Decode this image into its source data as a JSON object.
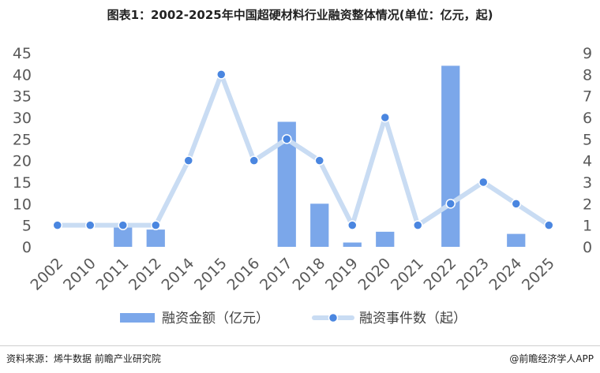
{
  "title": "图表1：2002-2025年中国超硬材料行业融资整体情况(单位：亿元，起)",
  "source_left": "资料来源：烯牛数据 前瞻产业研究院",
  "source_right": "@前瞻经济学人APP",
  "colors": {
    "bar": "#7ba7ea",
    "line": "#c9dcf3",
    "marker": "#4a86e0",
    "marker_edge": "#ffffff",
    "axis_text": "#595959"
  },
  "chart_data": {
    "type": "bar+line",
    "categories": [
      "2002",
      "2010",
      "2011",
      "2012",
      "2014",
      "2015",
      "2016",
      "2017",
      "2018",
      "2019",
      "2020",
      "2021",
      "2022",
      "2023",
      "2024",
      "2025"
    ],
    "series": [
      {
        "name": "融资金额（亿元）",
        "type": "bar",
        "axis": "left",
        "values": [
          0,
          0,
          5,
          4,
          0,
          0,
          0,
          29,
          10,
          1,
          3.5,
          0,
          42,
          0,
          3,
          0
        ]
      },
      {
        "name": "融资事件数（起）",
        "type": "line",
        "axis": "right",
        "values": [
          1,
          1,
          1,
          1,
          4,
          8,
          4,
          5,
          4,
          1,
          6,
          1,
          2,
          3,
          2,
          1
        ]
      }
    ],
    "y_left": {
      "min": 0,
      "max": 45,
      "ticks": [
        "0",
        "5",
        "10",
        "15",
        "20",
        "25",
        "30",
        "35",
        "40",
        "45"
      ]
    },
    "y_right": {
      "min": 0,
      "max": 9,
      "ticks": [
        "0",
        "1",
        "2",
        "3",
        "4",
        "5",
        "6",
        "7",
        "8",
        "9"
      ]
    },
    "grid": false,
    "legend_position": "bottom"
  }
}
